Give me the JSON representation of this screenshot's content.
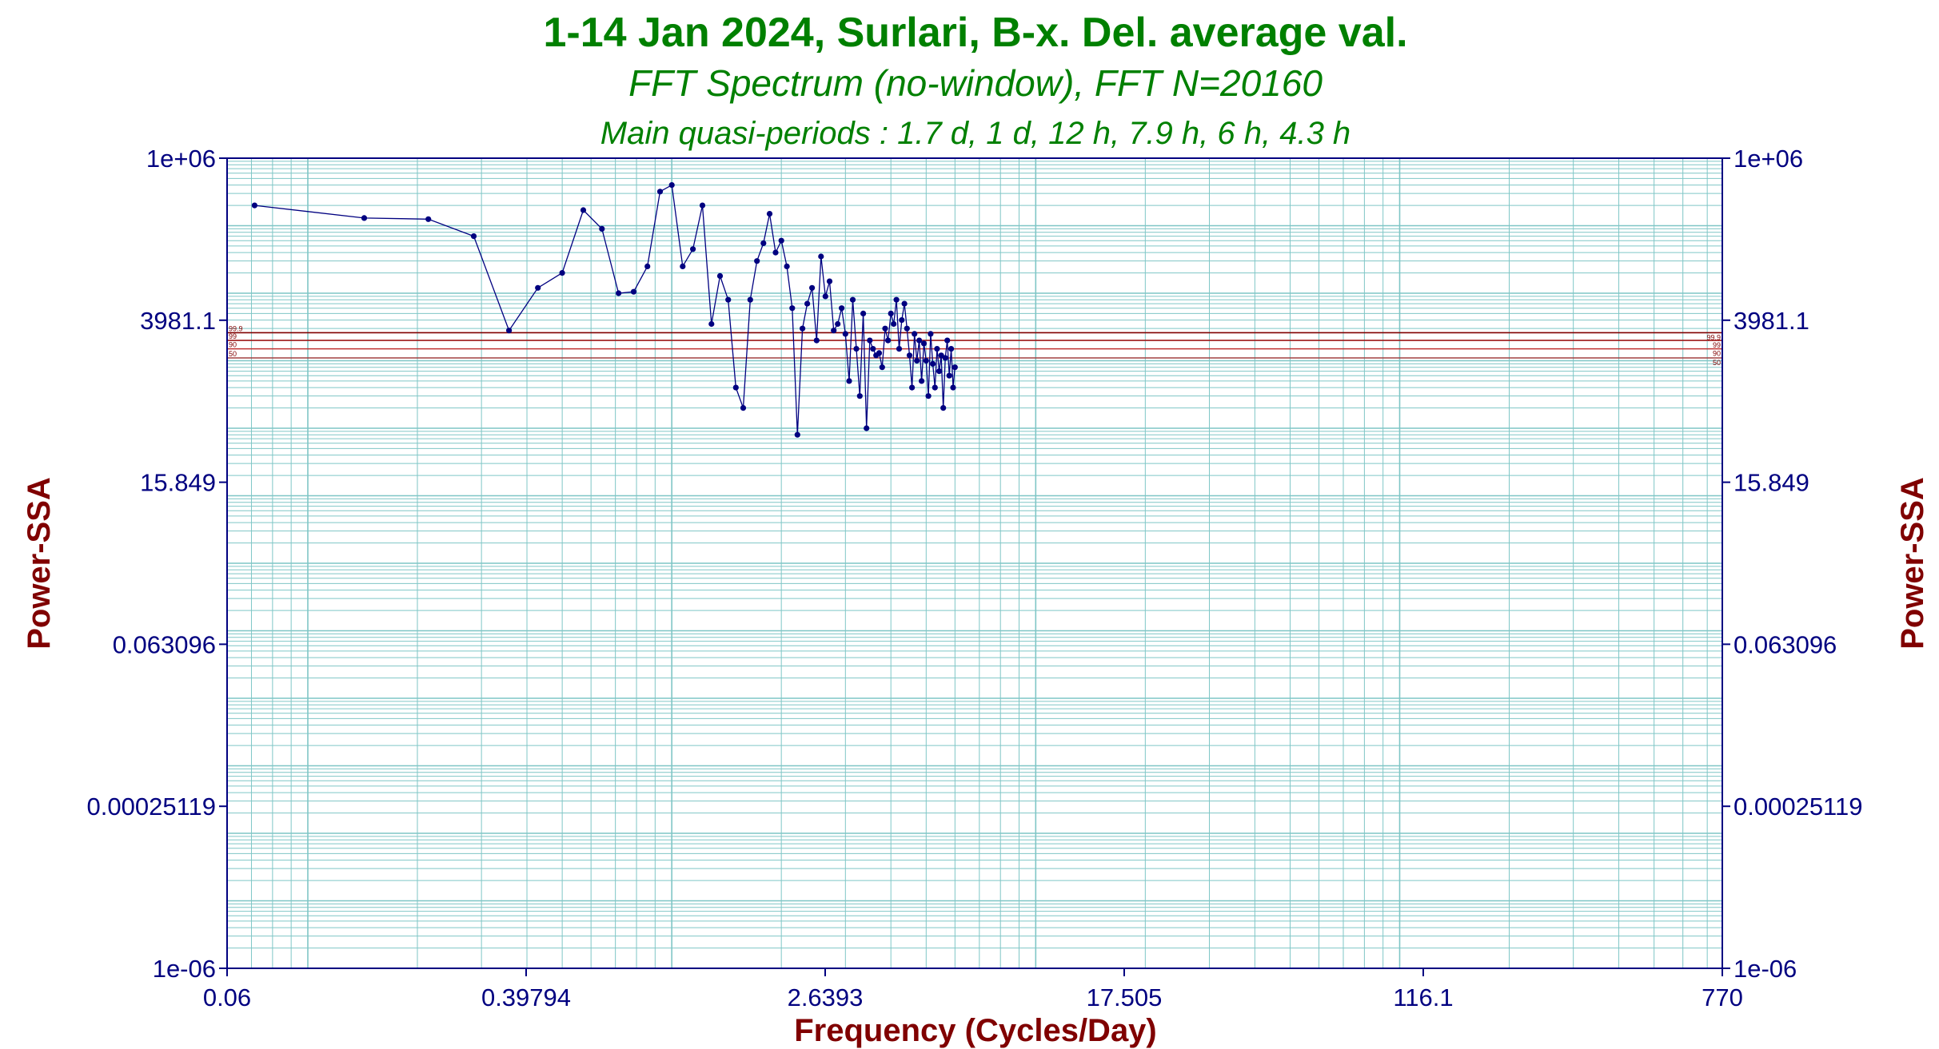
{
  "chart_data": {
    "type": "line",
    "title": "1-14 Jan 2024, Surlari, B-x. Del. average val.",
    "subtitle": "FFT Spectrum (no-window), FFT N=20160",
    "subtitle2": "Main quasi-periods : 1.7 d, 1 d, 12 h, 7.9 h, 6 h, 4.3 h",
    "xlabel": "Frequency (Cycles/Day)",
    "ylabel": "Power-SSA",
    "x_scale": "log",
    "y_scale": "log",
    "xlim": [
      0.06,
      770
    ],
    "ylim": [
      1e-06,
      1000000
    ],
    "x_ticks": [
      "0.06",
      "0.39794",
      "2.6393",
      "17.505",
      "116.1",
      "770"
    ],
    "y_ticks": [
      "1e+06",
      "3981.1",
      "15.849",
      "0.063096",
      "0.00025119",
      "1e-06"
    ],
    "grid": true,
    "significance_levels": [
      {
        "label": "99.9",
        "value": 2600
      },
      {
        "label": "99",
        "value": 2000
      },
      {
        "label": "90",
        "value": 1500
      },
      {
        "label": "50",
        "value": 1100
      }
    ],
    "series": [
      {
        "x": [
          0.0714,
          0.1429,
          0.2143,
          0.2857,
          0.3571,
          0.4286,
          0.5,
          0.5714,
          0.6429,
          0.7143,
          0.7857,
          0.8571,
          0.9286,
          1.0,
          1.0714,
          1.1429,
          1.2143,
          1.2857,
          1.3571,
          1.4286,
          1.5,
          1.5714,
          1.6429,
          1.7143,
          1.7857,
          1.8571,
          1.9286,
          2.0,
          2.0714,
          2.1429,
          2.2143,
          2.2857,
          2.3571,
          2.4286,
          2.5,
          2.5714,
          2.6429,
          2.7143,
          2.7857,
          2.8571,
          2.9286,
          3.0,
          3.0714,
          3.1429,
          3.2143,
          3.2857,
          3.3571,
          3.4286,
          3.5,
          3.5714,
          3.6429,
          3.7143,
          3.7857,
          3.8571,
          3.9286,
          4.0,
          4.0714,
          4.1429,
          4.2143,
          4.2857,
          4.3571,
          4.4286,
          4.5,
          4.5714,
          4.6429,
          4.7143,
          4.7857,
          4.8571,
          4.9286,
          5.0,
          5.0714,
          5.1429,
          5.2143,
          5.2857,
          5.3571,
          5.4286,
          5.5,
          5.5714,
          5.6429,
          5.7143,
          5.7857,
          5.8571,
          5.9286,
          6.0
        ],
        "y": [
          200000,
          130000,
          125000,
          70000,
          2800,
          12000,
          20000,
          170000,
          90000,
          10000,
          10500,
          25000,
          320000,
          400000,
          25000,
          45000,
          200000,
          3500,
          18000,
          8000,
          400,
          200,
          8000,
          30000,
          55000,
          150000,
          40000,
          60000,
          25000,
          6000,
          80,
          3000,
          7000,
          12000,
          2000,
          35000,
          9000,
          15000,
          2800,
          3500,
          6000,
          2500,
          500,
          8000,
          1500,
          300,
          5000,
          100,
          2000,
          1500,
          1200,
          1300,
          800,
          3000,
          2000,
          5000,
          3500,
          8000,
          1500,
          4000,
          7000,
          3000,
          1200,
          400,
          2500,
          1000,
          2000,
          500,
          1800,
          1000,
          300,
          2500,
          900,
          400,
          1500,
          700,
          1200,
          200,
          1100,
          2000,
          600,
          1500,
          400,
          800
        ]
      }
    ]
  }
}
